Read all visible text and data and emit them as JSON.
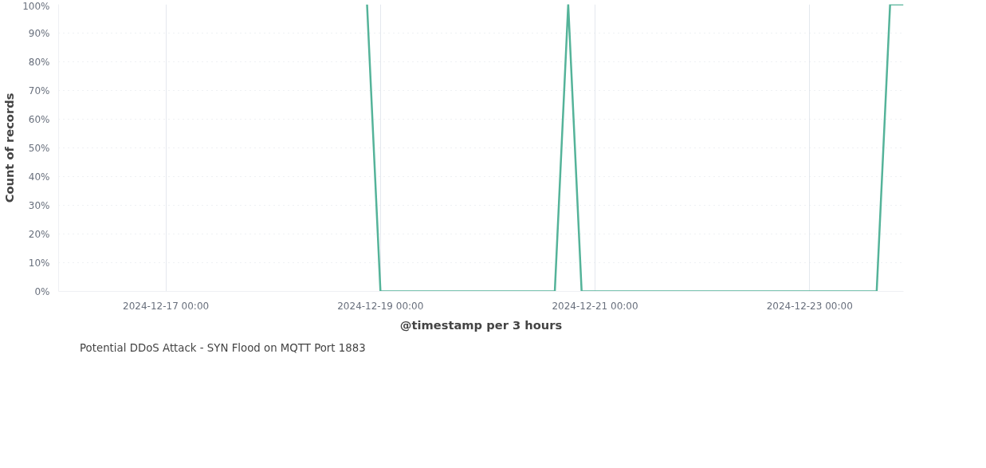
{
  "chart_data": {
    "type": "line",
    "xlabel": "@timestamp per 3 hours",
    "ylabel": "Count of records",
    "x": [
      "2024-12-18T21:00",
      "2024-12-19T00:00",
      "2024-12-20T15:00",
      "2024-12-20T18:00",
      "2024-12-20T21:00",
      "2024-12-23T15:00",
      "2024-12-23T18:00",
      "2024-12-23T21:00"
    ],
    "series": [
      {
        "name": "Potential DDoS Attack - SYN Flood on MQTT Port 1883",
        "color": "#54b399",
        "values": [
          100,
          0,
          0,
          100,
          0,
          0,
          100,
          100
        ]
      }
    ],
    "xlim": [
      "2024-12-16T00:00",
      "2024-12-23T21:00"
    ],
    "xticks": [
      {
        "value": "2024-12-17T00:00",
        "label": "2024-12-17 00:00"
      },
      {
        "value": "2024-12-19T00:00",
        "label": "2024-12-19 00:00"
      },
      {
        "value": "2024-12-21T00:00",
        "label": "2024-12-21 00:00"
      },
      {
        "value": "2024-12-23T00:00",
        "label": "2024-12-23 00:00"
      }
    ],
    "ylim": [
      0,
      100
    ],
    "yticks": [
      {
        "value": 0,
        "label": "0%"
      },
      {
        "value": 10,
        "label": "10%"
      },
      {
        "value": 20,
        "label": "20%"
      },
      {
        "value": 30,
        "label": "30%"
      },
      {
        "value": 40,
        "label": "40%"
      },
      {
        "value": 50,
        "label": "50%"
      },
      {
        "value": 60,
        "label": "60%"
      },
      {
        "value": 70,
        "label": "70%"
      },
      {
        "value": 80,
        "label": "80%"
      },
      {
        "value": 90,
        "label": "90%"
      },
      {
        "value": 100,
        "label": "100%"
      }
    ],
    "grid": true,
    "legend": "bottom left",
    "marker": "none",
    "line_style": "solid"
  }
}
